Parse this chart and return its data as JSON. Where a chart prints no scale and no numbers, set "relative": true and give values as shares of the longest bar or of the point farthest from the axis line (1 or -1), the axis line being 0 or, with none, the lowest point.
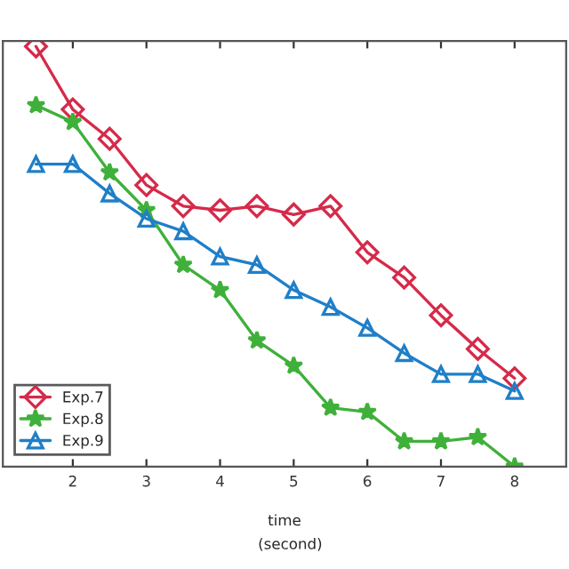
{
  "chart_data": {
    "type": "line",
    "xlabel": "time",
    "annotations": [
      "(second)"
    ],
    "relative": true,
    "x": [
      1.5,
      2,
      2.5,
      3,
      3.5,
      4,
      4.5,
      5,
      5.5,
      6,
      6.5,
      7,
      7.5,
      8
    ],
    "xlim": [
      1.05,
      8.7
    ],
    "xticks": [
      2,
      3,
      4,
      5,
      6,
      7,
      8
    ],
    "series": [
      {
        "name": "Exp.7",
        "color": "#d62a4a",
        "marker": "diamond",
        "values": [
          1,
          0.85,
          0.78,
          0.67,
          0.62,
          0.61,
          0.62,
          0.6,
          0.62,
          0.51,
          0.45,
          0.36,
          0.28,
          0.21
        ]
      },
      {
        "name": "Exp.8",
        "color": "#3fb03a",
        "marker": "star",
        "values": [
          0.86,
          0.82,
          0.7,
          0.61,
          0.48,
          0.42,
          0.3,
          0.24,
          0.14,
          0.13,
          0.06,
          0.06,
          0.07,
          0
        ]
      },
      {
        "name": "Exp.9",
        "color": "#1f7fc8",
        "marker": "triangle",
        "values": [
          0.72,
          0.72,
          0.65,
          0.59,
          0.56,
          0.5,
          0.48,
          0.42,
          0.38,
          0.33,
          0.27,
          0.22,
          0.22,
          0.18
        ]
      }
    ],
    "legend": "bottom left",
    "grid": false,
    "line_style": "solid"
  }
}
